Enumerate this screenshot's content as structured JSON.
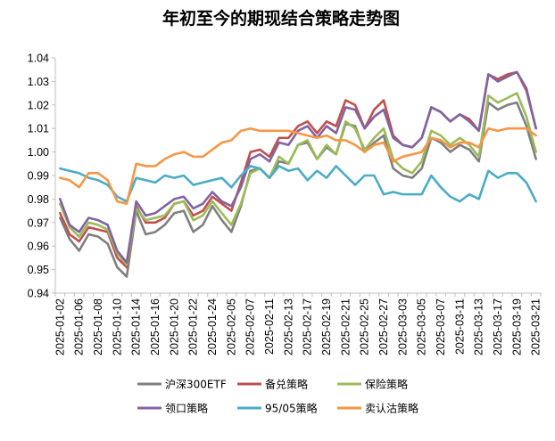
{
  "chart_data": {
    "type": "line",
    "title": "年初至今的期现结合策略走势图",
    "xlabel": "",
    "ylabel": "",
    "ylim": [
      0.94,
      1.04
    ],
    "yticks": [
      "0.94",
      "0.95",
      "0.96",
      "0.97",
      "0.98",
      "0.99",
      "1.00",
      "1.01",
      "1.02",
      "1.03",
      "1.04"
    ],
    "grid": false,
    "legend_position": "bottom",
    "x_tick_labels": [
      "2025-01-02",
      "2025-01-06",
      "2025-01-08",
      "2025-01-10",
      "2025-01-14",
      "2025-01-16",
      "2025-01-20",
      "2025-01-22",
      "2025-01-24",
      "2025-02-05",
      "2025-02-07",
      "2025-02-11",
      "2025-02-13",
      "2025-02-17",
      "2025-02-19",
      "2025-02-21",
      "2025-02-25",
      "2025-02-27",
      "2025-03-03",
      "2025-03-05",
      "2025-03-07",
      "2025-03-11",
      "2025-03-13",
      "2025-03-17",
      "2025-03-19",
      "2025-03-21"
    ],
    "series": [
      {
        "name": "沪深300ETF",
        "color": "#7f7f7f",
        "values": [
          0.972,
          0.963,
          0.958,
          0.965,
          0.964,
          0.961,
          0.951,
          0.947,
          0.975,
          0.965,
          0.966,
          0.969,
          0.974,
          0.975,
          0.966,
          0.969,
          0.977,
          0.971,
          0.966,
          0.977,
          0.992,
          0.993,
          0.989,
          0.996,
          0.995,
          1.003,
          1.004,
          0.997,
          1.002,
          0.999,
          1.012,
          1.011,
          1.0,
          1.004,
          1.007,
          0.993,
          0.99,
          0.989,
          0.993,
          1.006,
          1.004,
          1.0,
          1.003,
          1.001,
          0.996,
          1.021,
          1.018,
          1.02,
          1.021,
          1.011,
          0.997
        ]
      },
      {
        "name": "备兑策略",
        "color": "#c0504d",
        "values": [
          0.974,
          0.965,
          0.962,
          0.968,
          0.967,
          0.966,
          0.955,
          0.951,
          0.977,
          0.97,
          0.97,
          0.972,
          0.978,
          0.979,
          0.973,
          0.975,
          0.981,
          0.978,
          0.975,
          0.987,
          1.0,
          1.001,
          0.998,
          1.006,
          1.006,
          1.011,
          1.013,
          1.008,
          1.013,
          1.011,
          1.022,
          1.02,
          1.01,
          1.018,
          1.022,
          1.007,
          1.003,
          1.002,
          1.006,
          1.019,
          1.017,
          1.013,
          1.016,
          1.014,
          1.009,
          1.033,
          1.031,
          1.033,
          1.034,
          1.026,
          1.01
        ]
      },
      {
        "name": "保险策略",
        "color": "#9bbb59",
        "values": [
          0.978,
          0.968,
          0.964,
          0.97,
          0.969,
          0.967,
          0.957,
          0.952,
          0.976,
          0.971,
          0.972,
          0.973,
          0.978,
          0.979,
          0.971,
          0.973,
          0.979,
          0.974,
          0.969,
          0.978,
          0.991,
          0.993,
          0.989,
          0.998,
          0.995,
          1.003,
          1.005,
          0.997,
          1.003,
          0.999,
          1.013,
          1.01,
          1.001,
          1.006,
          1.01,
          0.997,
          0.993,
          0.991,
          0.996,
          1.009,
          1.007,
          1.003,
          1.006,
          1.003,
          0.998,
          1.024,
          1.021,
          1.023,
          1.025,
          1.015,
          1.0
        ]
      },
      {
        "name": "领口策略",
        "color": "#8064a2",
        "values": [
          0.98,
          0.969,
          0.966,
          0.972,
          0.971,
          0.969,
          0.958,
          0.953,
          0.979,
          0.973,
          0.974,
          0.977,
          0.98,
          0.981,
          0.976,
          0.978,
          0.983,
          0.979,
          0.977,
          0.985,
          0.997,
          0.999,
          0.996,
          1.004,
          1.003,
          1.009,
          1.011,
          1.006,
          1.011,
          1.008,
          1.019,
          1.018,
          1.01,
          1.015,
          1.018,
          1.006,
          1.003,
          1.002,
          1.006,
          1.019,
          1.017,
          1.013,
          1.016,
          1.013,
          1.009,
          1.033,
          1.03,
          1.032,
          1.034,
          1.027,
          1.01
        ]
      },
      {
        "name": "95/05策略",
        "color": "#4bacc6",
        "values": [
          0.993,
          0.992,
          0.991,
          0.989,
          0.988,
          0.986,
          0.981,
          0.979,
          0.989,
          0.988,
          0.987,
          0.99,
          0.989,
          0.99,
          0.986,
          0.987,
          0.988,
          0.989,
          0.985,
          0.99,
          0.994,
          0.993,
          0.989,
          0.994,
          0.992,
          0.993,
          0.988,
          0.992,
          0.989,
          0.994,
          0.99,
          0.986,
          0.99,
          0.99,
          0.982,
          0.983,
          0.982,
          0.982,
          0.982,
          0.99,
          0.985,
          0.981,
          0.979,
          0.982,
          0.98,
          0.992,
          0.989,
          0.991,
          0.991,
          0.987,
          0.979
        ]
      },
      {
        "name": "卖认沽策略",
        "color": "#f79646",
        "values": [
          0.989,
          0.988,
          0.985,
          0.991,
          0.991,
          0.988,
          0.979,
          0.978,
          0.995,
          0.994,
          0.994,
          0.997,
          0.999,
          1.0,
          0.998,
          0.998,
          1.001,
          1.004,
          1.005,
          1.009,
          1.01,
          1.009,
          1.009,
          1.009,
          1.009,
          1.008,
          1.007,
          1.006,
          1.007,
          1.005,
          1.005,
          1.003,
          1.0,
          1.003,
          1.004,
          0.996,
          0.998,
          0.999,
          1.0,
          1.006,
          1.005,
          1.002,
          1.004,
          1.004,
          1.002,
          1.01,
          1.009,
          1.01,
          1.01,
          1.01,
          1.007
        ]
      }
    ]
  }
}
